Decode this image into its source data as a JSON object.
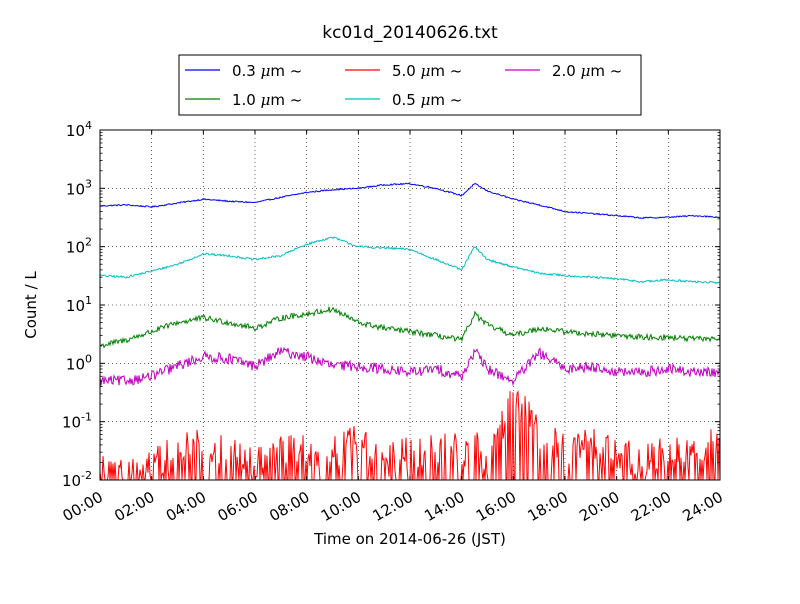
{
  "chart_data": {
    "type": "line",
    "title": "kc01d_20140626.txt",
    "xlabel": "Time on 2014-06-26 (JST)",
    "ylabel": "Count / L",
    "x_ticks": [
      "00:00",
      "02:00",
      "04:00",
      "06:00",
      "08:00",
      "10:00",
      "12:00",
      "14:00",
      "16:00",
      "18:00",
      "20:00",
      "22:00",
      "24:00"
    ],
    "x_range_hours": [
      0,
      24
    ],
    "y_scale": "log",
    "y_range": [
      0.01,
      10000
    ],
    "y_ticks": [
      {
        "base": "10",
        "exp": "-2",
        "value": 0.01
      },
      {
        "base": "10",
        "exp": "-1",
        "value": 0.1
      },
      {
        "base": "10",
        "exp": "0",
        "value": 1
      },
      {
        "base": "10",
        "exp": "1",
        "value": 10
      },
      {
        "base": "10",
        "exp": "2",
        "value": 100
      },
      {
        "base": "10",
        "exp": "3",
        "value": 1000
      },
      {
        "base": "10",
        "exp": "4",
        "value": 10000
      }
    ],
    "grid": true,
    "legend_position": "top-center",
    "x": [
      0,
      1,
      2,
      3,
      4,
      5,
      6,
      7,
      8,
      9,
      10,
      11,
      12,
      13,
      14,
      14.5,
      15,
      16,
      17,
      18,
      19,
      20,
      21,
      22,
      23,
      24
    ],
    "series": [
      {
        "name": "0.3",
        "legend_unit": "μm",
        "legend_suffix": "~",
        "color": "#0000ff",
        "values": [
          500,
          520,
          480,
          560,
          650,
          600,
          570,
          700,
          850,
          950,
          1000,
          1150,
          1200,
          1000,
          750,
          1200,
          900,
          650,
          520,
          400,
          370,
          340,
          310,
          320,
          340,
          320
        ]
      },
      {
        "name": "0.5",
        "legend_unit": "μm",
        "legend_suffix": "~",
        "color": "#00bfbf",
        "values": [
          32,
          30,
          38,
          50,
          75,
          70,
          60,
          70,
          110,
          145,
          100,
          95,
          90,
          60,
          40,
          100,
          60,
          45,
          35,
          32,
          30,
          28,
          25,
          27,
          25,
          24
        ]
      },
      {
        "name": "1.0",
        "legend_unit": "μm",
        "legend_suffix": "~",
        "color": "#008000",
        "values": [
          2,
          2.5,
          3.5,
          5,
          6,
          5,
          4,
          6,
          7,
          8.5,
          5,
          4,
          3.5,
          3,
          2.5,
          7,
          4.5,
          3,
          4,
          3.5,
          3.2,
          3,
          2.8,
          2.8,
          2.6,
          2.7
        ]
      },
      {
        "name": "2.0",
        "legend_unit": "μm",
        "legend_suffix": "~",
        "color": "#bf00bf",
        "values": [
          0.5,
          0.5,
          0.6,
          0.9,
          1.3,
          1.2,
          0.9,
          1.6,
          1.3,
          0.9,
          0.9,
          0.8,
          0.7,
          0.8,
          0.6,
          1.6,
          0.8,
          0.5,
          1.5,
          0.8,
          0.9,
          0.7,
          0.7,
          0.8,
          0.7,
          0.7
        ]
      },
      {
        "name": "5.0",
        "legend_unit": "μm",
        "legend_suffix": "~",
        "color": "#ff0000",
        "values": [
          0.02,
          0.01,
          0.02,
          0.03,
          0.04,
          0.03,
          0.02,
          0.04,
          0.03,
          0.03,
          0.05,
          0.02,
          0.03,
          0.04,
          0.03,
          0.04,
          0.02,
          0.3,
          0.06,
          0.03,
          0.04,
          0.03,
          0.02,
          0.03,
          0.03,
          0.06
        ]
      }
    ],
    "legend_order": [
      0,
      2,
      4,
      1,
      3
    ]
  }
}
